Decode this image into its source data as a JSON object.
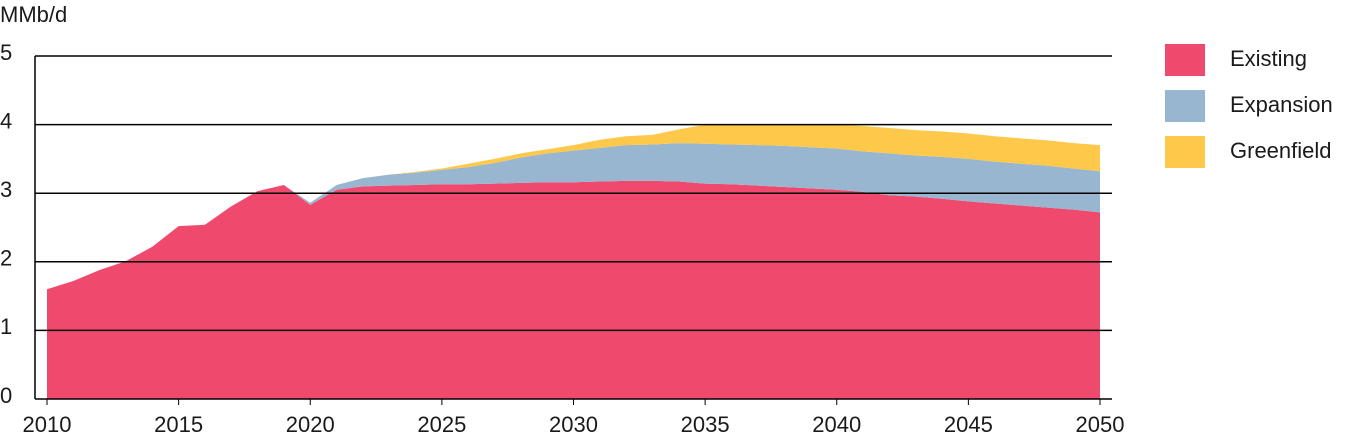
{
  "chart_data": {
    "type": "stacked_area",
    "y_label": "MMb/d",
    "x": [
      2010,
      2011,
      2012,
      2013,
      2014,
      2015,
      2016,
      2017,
      2018,
      2019,
      2020,
      2021,
      2022,
      2023,
      2024,
      2025,
      2026,
      2027,
      2028,
      2029,
      2030,
      2031,
      2032,
      2033,
      2034,
      2035,
      2036,
      2037,
      2038,
      2039,
      2040,
      2041,
      2042,
      2043,
      2044,
      2045,
      2046,
      2047,
      2048,
      2049,
      2050
    ],
    "series": [
      {
        "name": "Existing",
        "color": "#ef4a6e",
        "values": [
          1.6,
          1.72,
          1.88,
          2.01,
          2.22,
          2.52,
          2.54,
          2.81,
          3.03,
          3.12,
          2.83,
          3.05,
          3.1,
          3.11,
          3.12,
          3.13,
          3.13,
          3.14,
          3.15,
          3.16,
          3.16,
          3.17,
          3.18,
          3.18,
          3.17,
          3.14,
          3.13,
          3.11,
          3.09,
          3.07,
          3.05,
          3.02,
          2.97,
          2.95,
          2.92,
          2.88,
          2.85,
          2.82,
          2.79,
          2.76,
          2.72
        ]
      },
      {
        "name": "Expansion",
        "color": "#98b6d0",
        "values": [
          0,
          0,
          0,
          0,
          0,
          0,
          0,
          0,
          0,
          0,
          0.03,
          0.07,
          0.12,
          0.16,
          0.18,
          0.21,
          0.25,
          0.3,
          0.37,
          0.42,
          0.46,
          0.49,
          0.52,
          0.53,
          0.56,
          0.58,
          0.58,
          0.59,
          0.6,
          0.6,
          0.6,
          0.59,
          0.61,
          0.6,
          0.61,
          0.62,
          0.61,
          0.61,
          0.61,
          0.6,
          0.6
        ]
      },
      {
        "name": "Greenfield",
        "color": "#fec84a",
        "values": [
          0,
          0,
          0,
          0,
          0,
          0,
          0,
          0,
          0,
          0,
          0,
          0,
          0,
          0,
          0.01,
          0.02,
          0.05,
          0.06,
          0.06,
          0.06,
          0.08,
          0.12,
          0.13,
          0.14,
          0.2,
          0.28,
          0.29,
          0.3,
          0.31,
          0.33,
          0.35,
          0.37,
          0.37,
          0.37,
          0.37,
          0.37,
          0.37,
          0.37,
          0.37,
          0.37,
          0.38
        ]
      }
    ],
    "xlim": [
      2010,
      2050
    ],
    "xticks": [
      2010,
      2015,
      2020,
      2025,
      2030,
      2035,
      2040,
      2045,
      2050
    ],
    "ylim": [
      0,
      5
    ],
    "yticks": [
      0,
      1,
      2,
      3,
      4,
      5
    ],
    "grid": true,
    "legend": "right"
  }
}
